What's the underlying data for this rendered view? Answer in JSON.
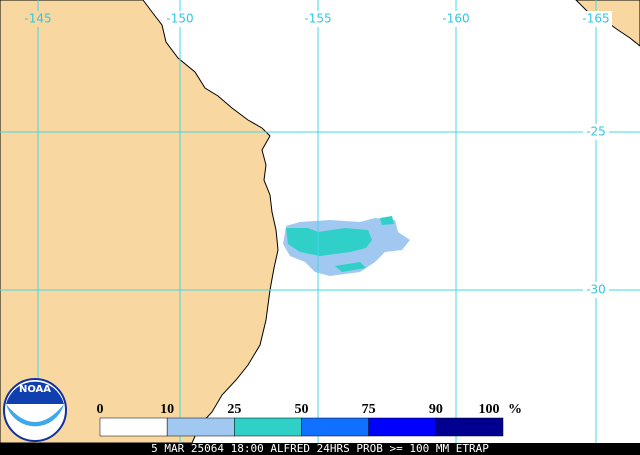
{
  "map": {
    "lon_labels": [
      "-145",
      "-150",
      "-155",
      "-160",
      "-165"
    ],
    "lat_labels": [
      "-25",
      "-30"
    ],
    "legend": {
      "labels": [
        "0",
        "10",
        "25",
        "50",
        "75",
        "90",
        "100"
      ],
      "unit": "%",
      "colors": [
        "#ffffff",
        "#a0c8f0",
        "#30d0c8",
        "#1070ff",
        "#0000ff",
        "#000090"
      ]
    },
    "logo": "NOAA",
    "caption": "5 MAR 25064 18:00 ALFRED 24HRS PROB >= 100 MM ETRAP"
  }
}
